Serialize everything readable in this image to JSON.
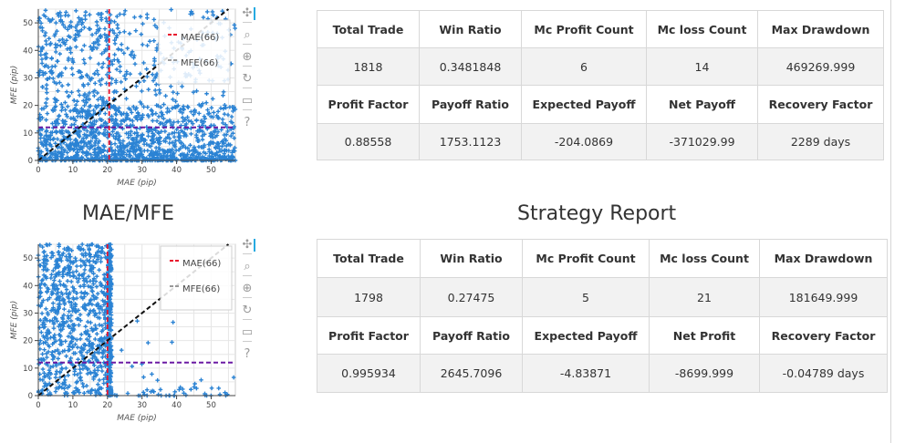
{
  "plots": [
    {
      "xlabel": "MAE (pip)",
      "ylabel": "MFE (pip)",
      "x_ticks": [
        "0",
        "10",
        "20",
        "30",
        "40",
        "50"
      ],
      "y_ticks": [
        "0",
        "10",
        "20",
        "30",
        "40",
        "50"
      ],
      "xlim": [
        0,
        57
      ],
      "ylim": [
        0,
        55
      ],
      "mae_line": 20.5,
      "mfe_line": 12,
      "legend": [
        "MAE(66)",
        "MFE(66)"
      ],
      "colors": {
        "points": "#2b83d4",
        "mae": "#e8132d",
        "mfe": "#6b1aa3",
        "diag": "#111111"
      }
    },
    {
      "xlabel": "MAE (pip)",
      "ylabel": "MFE (pip)",
      "x_ticks": [
        "0",
        "10",
        "20",
        "30",
        "40",
        "50"
      ],
      "y_ticks": [
        "0",
        "10",
        "20",
        "30",
        "40",
        "50"
      ],
      "xlim": [
        0,
        57
      ],
      "ylim": [
        0,
        55
      ],
      "mae_line": 20,
      "mfe_line": 12,
      "legend": [
        "MAE(66)",
        "MFE(66)"
      ],
      "colors": {
        "points": "#2b83d4",
        "mae": "#e8132d",
        "mfe": "#6b1aa3",
        "diag": "#111111"
      }
    }
  ],
  "toolbar_icons": [
    "pan-icon",
    "box-zoom-icon",
    "wheel-zoom-icon",
    "reset-icon",
    "save-icon",
    "help-icon"
  ],
  "toolbar_glyphs": [
    "✣",
    "⌕",
    "⊕",
    "↻",
    "▭",
    "?"
  ],
  "captions": {
    "mae_mfe": "MAE/MFE",
    "strategy_report": "Strategy Report"
  },
  "report1": {
    "row1_headers": [
      "Total Trade",
      "Win Ratio",
      "Mc Profit Count",
      "Mc loss Count",
      "Max Drawdown"
    ],
    "row1_values": [
      "1818",
      "0.3481848",
      "6",
      "14",
      "469269.999"
    ],
    "row2_headers": [
      "Profit Factor",
      "Payoff Ratio",
      "Expected Payoff",
      "Net Payoff",
      "Recovery Factor"
    ],
    "row2_values": [
      "0.88558",
      "1753.1123",
      "-204.0869",
      "-371029.99",
      "2289 days"
    ]
  },
  "report2": {
    "row1_headers": [
      "Total Trade",
      "Win Ratio",
      "Mc Profit Count",
      "Mc loss Count",
      "Max Drawdown"
    ],
    "row1_values": [
      "1798",
      "0.27475",
      "5",
      "21",
      "181649.999"
    ],
    "row2_headers": [
      "Profit Factor",
      "Payoff Ratio",
      "Expected Payoff",
      "Net Profit",
      "Recovery Factor"
    ],
    "row2_values": [
      "0.995934",
      "2645.7096",
      "-4.83871",
      "-8699.999",
      "-0.04789 days"
    ]
  }
}
